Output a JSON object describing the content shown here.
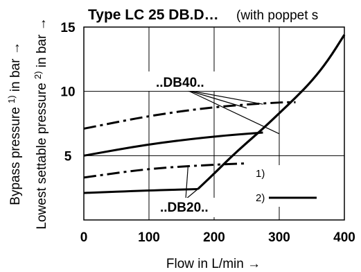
{
  "chart_data": {
    "type": "line",
    "title": "Type LC 25 DB.D…",
    "subtitle": "(with poppet s",
    "xlabel": "Flow in L/min →",
    "ylabel_line1_pre": "Bypass pressure ",
    "ylabel_line1_sup": "1)",
    "ylabel_line1_post": " in bar →",
    "ylabel_line2_pre": "Lowest settable pressure ",
    "ylabel_line2_sup": "2)",
    "ylabel_line2_post": " in bar →",
    "xlim": [
      0,
      400
    ],
    "ylim": [
      0,
      15
    ],
    "x_ticks": [
      0,
      100,
      200,
      300,
      400
    ],
    "y_ticks": [
      5,
      10,
      15
    ],
    "x_tick_labels": [
      "0",
      "100",
      "200",
      "300",
      "400"
    ],
    "y_tick_labels": [
      "5",
      "10",
      "15"
    ],
    "grid": true,
    "series": [
      {
        "style": "dash-dot",
        "group": "..DB40..",
        "x": [
          0,
          100,
          200,
          300,
          325
        ],
        "y": [
          7.1,
          8.1,
          8.8,
          9.15,
          9.15
        ]
      },
      {
        "style": "solid",
        "group": "..DB40..",
        "x": [
          0,
          100,
          200,
          275
        ],
        "y": [
          5.0,
          5.9,
          6.5,
          6.8
        ]
      },
      {
        "style": "dash-dot",
        "group": "..DB20..",
        "x": [
          0,
          100,
          200,
          250
        ],
        "y": [
          3.3,
          4.0,
          4.3,
          4.4
        ]
      },
      {
        "style": "solid",
        "group": "..DB20..",
        "x": [
          0,
          100,
          175
        ],
        "y": [
          2.1,
          2.3,
          2.4
        ]
      },
      {
        "style": "solid-bold",
        "group": "bypass",
        "x": [
          175,
          200,
          225,
          250,
          275,
          300,
          325,
          350,
          375,
          400
        ],
        "y": [
          2.4,
          3.6,
          4.85,
          6.0,
          7.1,
          8.3,
          9.5,
          10.8,
          12.4,
          14.4
        ]
      }
    ],
    "labels": [
      {
        "text": "..DB40..",
        "points_to": [
          [
            275,
            9.0
          ],
          [
            250,
            8.7
          ],
          [
            300,
            6.7
          ]
        ]
      },
      {
        "text": "..DB20..",
        "points_to": [
          [
            160,
            4.2
          ],
          [
            175,
            2.4
          ]
        ]
      }
    ],
    "legend": {
      "position": "bottom-right",
      "items": [
        {
          "key": "1)",
          "style": "none"
        },
        {
          "key": "2)",
          "style": "solid-bold"
        }
      ]
    }
  }
}
